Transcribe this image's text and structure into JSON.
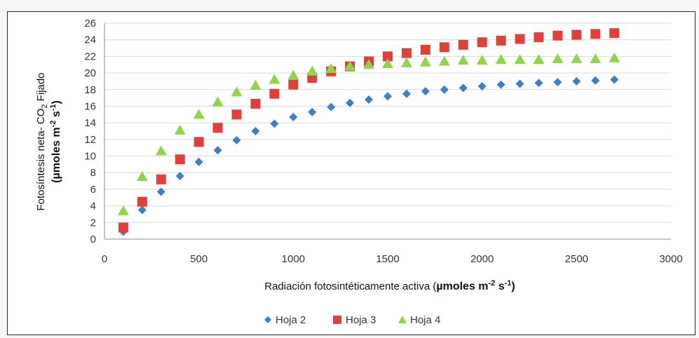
{
  "chart_data": {
    "type": "scatter",
    "title": "",
    "xlabel": {
      "main": "Radiación fotosintéticamente activa (",
      "unit": "µmoles m",
      "exp1": "-2",
      "mid": " s",
      "exp2": "-1",
      "end": ")"
    },
    "ylabel": {
      "line1": "Fotosíntesis neta- CO",
      "line1_sub": "2",
      "line1_end": " Fijado",
      "line2": "(µmoles m",
      "line2_exp1": "-2",
      "line2_mid": " s",
      "line2_exp2": "-1",
      "line2_end": ")"
    },
    "xlim": [
      0,
      3000
    ],
    "ylim": [
      0,
      26
    ],
    "x_ticks": [
      "0",
      "500",
      "1000",
      "1500",
      "2000",
      "2500",
      "3000"
    ],
    "y_ticks": [
      "0",
      "2",
      "4",
      "6",
      "8",
      "10",
      "12",
      "14",
      "16",
      "18",
      "20",
      "22",
      "24",
      "26"
    ],
    "grid": "horizontal",
    "legend_position": "bottom",
    "x": [
      100,
      200,
      300,
      400,
      500,
      600,
      700,
      800,
      900,
      1000,
      1100,
      1200,
      1300,
      1400,
      1500,
      1600,
      1700,
      1800,
      1900,
      2000,
      2100,
      2200,
      2300,
      2400,
      2500,
      2600,
      2700
    ],
    "series": [
      {
        "name": "Hoja 2",
        "marker": "diamond",
        "color": "#3f7fbf",
        "values": [
          0.9,
          3.5,
          5.7,
          7.6,
          9.3,
          10.7,
          11.9,
          13.0,
          13.9,
          14.7,
          15.3,
          15.9,
          16.4,
          16.8,
          17.2,
          17.5,
          17.8,
          18.0,
          18.2,
          18.4,
          18.6,
          18.7,
          18.8,
          18.9,
          19.0,
          19.1,
          19.2
        ]
      },
      {
        "name": "Hoja 3",
        "marker": "square",
        "color": "#e0403a",
        "values": [
          1.4,
          4.5,
          7.2,
          9.6,
          11.7,
          13.4,
          15.0,
          16.3,
          17.5,
          18.6,
          19.4,
          20.2,
          20.8,
          21.4,
          22.0,
          22.4,
          22.8,
          23.1,
          23.4,
          23.7,
          23.9,
          24.1,
          24.3,
          24.5,
          24.6,
          24.7,
          24.8
        ]
      },
      {
        "name": "Hoja 4",
        "marker": "triangle",
        "color": "#8fd44a",
        "values": [
          3.4,
          7.5,
          10.6,
          13.1,
          15.0,
          16.5,
          17.7,
          18.5,
          19.2,
          19.7,
          20.2,
          20.5,
          20.8,
          21.0,
          21.1,
          21.2,
          21.3,
          21.4,
          21.5,
          21.5,
          21.6,
          21.6,
          21.6,
          21.7,
          21.7,
          21.7,
          21.8
        ]
      }
    ]
  }
}
